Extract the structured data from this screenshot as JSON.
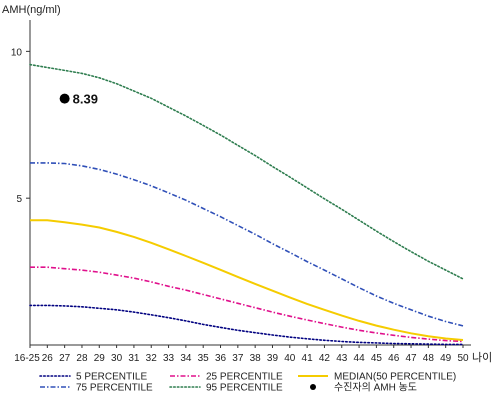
{
  "chart_data": {
    "type": "line",
    "title": "",
    "ylabel": "AMH(ng/ml)",
    "xlabel": "나이",
    "ylim": [
      0,
      11
    ],
    "yticks": [
      5,
      10
    ],
    "categories": [
      "16-25",
      "26",
      "27",
      "28",
      "29",
      "30",
      "31",
      "32",
      "33",
      "34",
      "35",
      "36",
      "37",
      "38",
      "39",
      "40",
      "41",
      "42",
      "43",
      "44",
      "45",
      "46",
      "47",
      "48",
      "49",
      "50"
    ],
    "grid": false,
    "legend_position": "bottom",
    "series": [
      {
        "name": "5 PERCENTILE",
        "color": "#000080",
        "dash": "dotted",
        "values": [
          1.35,
          1.35,
          1.33,
          1.3,
          1.25,
          1.2,
          1.12,
          1.03,
          0.93,
          0.82,
          0.7,
          0.6,
          0.5,
          0.42,
          0.34,
          0.27,
          0.21,
          0.16,
          0.12,
          0.09,
          0.07,
          0.05,
          0.04,
          0.03,
          0.02,
          0.02
        ]
      },
      {
        "name": "25 PERCENTILE",
        "color": "#e0108c",
        "dash": "dashdot",
        "values": [
          2.65,
          2.65,
          2.6,
          2.55,
          2.48,
          2.38,
          2.28,
          2.15,
          2.0,
          1.87,
          1.72,
          1.57,
          1.42,
          1.27,
          1.12,
          0.98,
          0.85,
          0.73,
          0.61,
          0.5,
          0.41,
          0.33,
          0.26,
          0.2,
          0.15,
          0.12
        ]
      },
      {
        "name": "MEDIAN(50 PERCENTILE)",
        "color": "#f5cc00",
        "dash": "solid",
        "values": [
          4.25,
          4.25,
          4.18,
          4.1,
          4.0,
          3.85,
          3.68,
          3.48,
          3.26,
          3.03,
          2.8,
          2.56,
          2.32,
          2.08,
          1.85,
          1.62,
          1.4,
          1.2,
          1.0,
          0.82,
          0.66,
          0.52,
          0.4,
          0.3,
          0.22,
          0.17
        ]
      },
      {
        "name": "75 PERCENTILE",
        "color": "#3050b8",
        "dash": "dashdot",
        "values": [
          6.2,
          6.2,
          6.18,
          6.1,
          5.98,
          5.82,
          5.63,
          5.42,
          5.18,
          4.93,
          4.65,
          4.37,
          4.07,
          3.77,
          3.45,
          3.15,
          2.84,
          2.55,
          2.25,
          1.95,
          1.67,
          1.42,
          1.2,
          0.98,
          0.8,
          0.65
        ]
      },
      {
        "name": "95 PERCENTILE",
        "color": "#2e7d4f",
        "dash": "dotted",
        "values": [
          9.55,
          9.45,
          9.35,
          9.25,
          9.1,
          8.9,
          8.65,
          8.4,
          8.1,
          7.8,
          7.48,
          7.15,
          6.8,
          6.45,
          6.08,
          5.72,
          5.35,
          4.98,
          4.62,
          4.25,
          3.88,
          3.52,
          3.18,
          2.85,
          2.55,
          2.25
        ]
      }
    ],
    "point": {
      "name": "수진자의 AMH 농도",
      "category": "27",
      "value": 8.39,
      "label": "8.39",
      "color": "#000000"
    }
  }
}
